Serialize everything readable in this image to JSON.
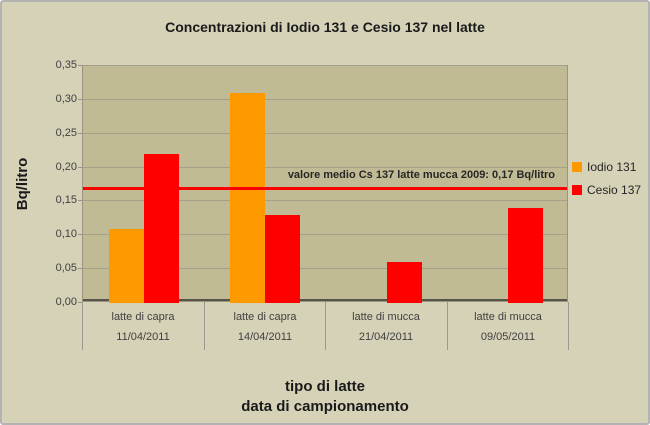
{
  "chart_data": {
    "type": "bar",
    "title": "Concentrazioni di Iodio 131 e Cesio 137 nel latte",
    "categories": [
      {
        "tipo": "latte di capra",
        "data": "11/04/2011"
      },
      {
        "tipo": "latte di capra",
        "data": "14/04/2011"
      },
      {
        "tipo": "latte di mucca",
        "data": "21/04/2011"
      },
      {
        "tipo": "latte di mucca",
        "data": "09/05/2011"
      }
    ],
    "series": [
      {
        "name": "Iodio 131",
        "color": "#FF9900",
        "values": [
          0.11,
          0.31,
          null,
          null
        ]
      },
      {
        "name": "Cesio 137",
        "color": "#FF0000",
        "values": [
          0.22,
          0.13,
          0.06,
          0.14
        ]
      }
    ],
    "ylabel": "Bq/litro",
    "xlabel_line1": "tipo di latte",
    "xlabel_line2": "data di campionamento",
    "ylim": [
      0,
      0.35
    ],
    "ytick_step": 0.05,
    "ytick_labels": [
      "0,00",
      "0,05",
      "0,10",
      "0,15",
      "0,20",
      "0,25",
      "0,30",
      "0,35"
    ],
    "grid": true,
    "legend_position": "right",
    "reference_line": {
      "value": 0.17,
      "color": "#FF0000",
      "label": "valore medio Cs 137 latte mucca 2009:  0,17 Bq/litro"
    }
  },
  "colors": {
    "background": "#D6D2B8",
    "plot_background": "#C0BB94",
    "gridline": "#A3A08C",
    "plot_border": "#98947F",
    "axis_line": "#55534A",
    "divider": "#9C9A8F",
    "title_text": "#1A1A1A",
    "tick_text": "#404040",
    "annotation_text": "#262626",
    "frame_border": "#B3B3B3"
  }
}
